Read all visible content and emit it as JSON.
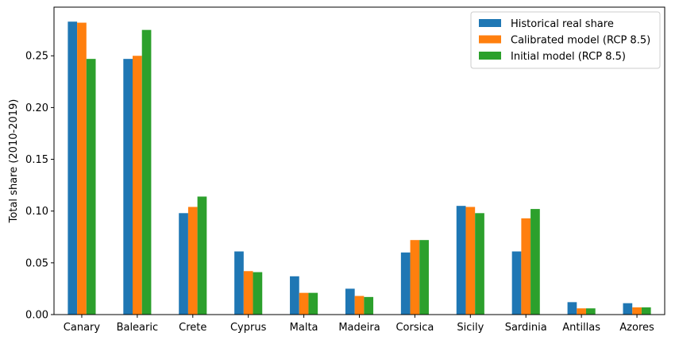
{
  "chart_data": {
    "type": "bar",
    "title": "",
    "xlabel": "",
    "ylabel": "Total share (2010-2019)",
    "ylim": [
      0,
      0.297
    ],
    "yticks": [
      0.0,
      0.05,
      0.1,
      0.15,
      0.2,
      0.25
    ],
    "ytick_labels": [
      "0.00",
      "0.05",
      "0.10",
      "0.15",
      "0.20",
      "0.25"
    ],
    "grid": false,
    "legend_position": "top-right",
    "categories": [
      "Canary",
      "Balearic",
      "Crete",
      "Cyprus",
      "Malta",
      "Madeira",
      "Corsica",
      "Sicily",
      "Sardinia",
      "Antillas",
      "Azores"
    ],
    "series": [
      {
        "name": "Historical real share",
        "color": "#1f77b4",
        "values": [
          0.283,
          0.247,
          0.098,
          0.061,
          0.037,
          0.025,
          0.06,
          0.105,
          0.061,
          0.012,
          0.011
        ]
      },
      {
        "name": "Calibrated model (RCP 8.5)",
        "color": "#ff7f0e",
        "values": [
          0.282,
          0.25,
          0.104,
          0.042,
          0.021,
          0.018,
          0.072,
          0.104,
          0.093,
          0.006,
          0.007
        ]
      },
      {
        "name": "Initial model (RCP 8.5)",
        "color": "#2ca02c",
        "values": [
          0.247,
          0.275,
          0.114,
          0.041,
          0.021,
          0.017,
          0.072,
          0.098,
          0.102,
          0.006,
          0.007
        ]
      }
    ]
  }
}
